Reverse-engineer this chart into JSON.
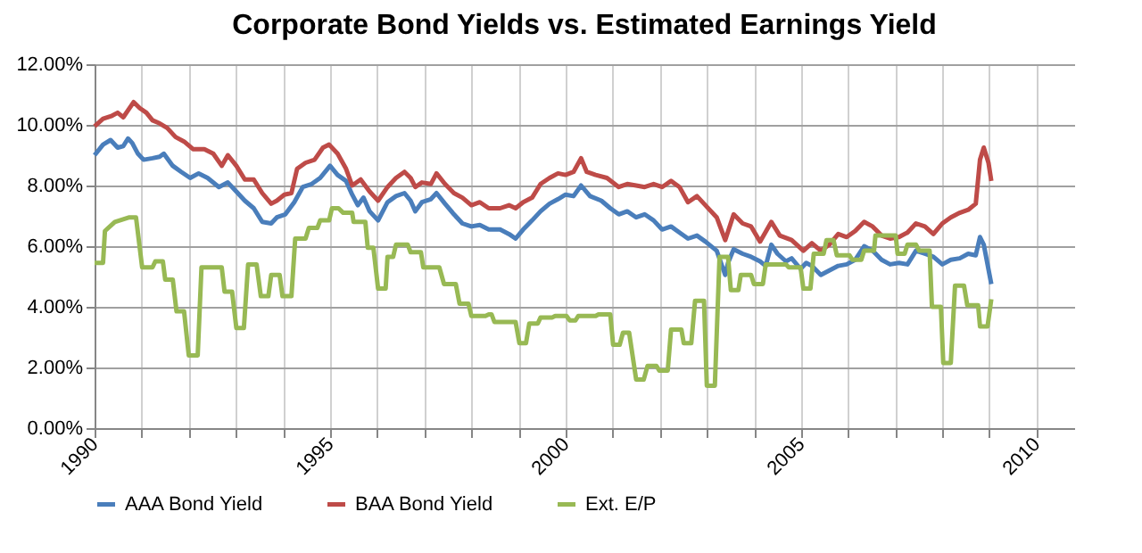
{
  "chart_data": {
    "type": "line",
    "title": "Corporate Bond Yields vs. Estimated Earnings Yield",
    "xlim": [
      1990,
      2010.8
    ],
    "xticks": [
      1990,
      {
        "value": 1991,
        "label": null
      },
      {
        "value": 1992,
        "label": null
      },
      {
        "value": 1993,
        "label": null
      },
      {
        "value": 1994,
        "label": null
      },
      1995,
      {
        "value": 1996,
        "label": null
      },
      {
        "value": 1997,
        "label": null
      },
      {
        "value": 1998,
        "label": null
      },
      {
        "value": 1999,
        "label": null
      },
      2000,
      {
        "value": 2001,
        "label": null
      },
      {
        "value": 2002,
        "label": null
      },
      {
        "value": 2003,
        "label": null
      },
      {
        "value": 2004,
        "label": null
      },
      2005,
      {
        "value": 2006,
        "label": null
      },
      {
        "value": 2007,
        "label": null
      },
      {
        "value": 2008,
        "label": null
      },
      {
        "value": 2009,
        "label": null
      },
      2010
    ],
    "ylim": [
      0,
      12
    ],
    "yticks": [
      {
        "value": 0,
        "label": "0.00%"
      },
      {
        "value": 2,
        "label": "2.00%"
      },
      {
        "value": 4,
        "label": "4.00%"
      },
      {
        "value": 6,
        "label": "6.00%"
      },
      {
        "value": 8,
        "label": "8.00%"
      },
      {
        "value": 10,
        "label": "10.00%"
      },
      {
        "value": 12,
        "label": "12.00%"
      }
    ],
    "grid": true,
    "legend": "bottom",
    "marker": "none",
    "line_style": "solid",
    "series": [
      {
        "name": "AAA Bond Yield",
        "color": "#4a7ebb",
        "x": [
          1990.0,
          1990.18,
          1990.34,
          1990.49,
          1990.61,
          1990.71,
          1990.8,
          1990.92,
          1991.04,
          1991.23,
          1991.38,
          1991.47,
          1991.66,
          1991.84,
          1992.03,
          1992.21,
          1992.4,
          1992.64,
          1992.83,
          1993.01,
          1993.19,
          1993.38,
          1993.56,
          1993.75,
          1993.87,
          1994.05,
          1994.24,
          1994.42,
          1994.61,
          1994.79,
          1995.0,
          1995.16,
          1995.34,
          1995.47,
          1995.59,
          1995.71,
          1995.84,
          1996.02,
          1996.22,
          1996.4,
          1996.58,
          1996.71,
          1996.81,
          1996.95,
          1997.14,
          1997.26,
          1997.44,
          1997.63,
          1997.81,
          1998.0,
          1998.18,
          1998.37,
          1998.61,
          1998.8,
          1998.94,
          1999.1,
          1999.29,
          1999.47,
          1999.66,
          1999.84,
          2000.0,
          2000.17,
          2000.33,
          2000.52,
          2000.76,
          2000.95,
          2001.13,
          2001.31,
          2001.5,
          2001.68,
          2001.87,
          2002.05,
          2002.24,
          2002.42,
          2002.6,
          2002.79,
          2002.97,
          2003.21,
          2003.39,
          2003.45,
          2003.57,
          2003.76,
          2003.94,
          2004.13,
          2004.25,
          2004.37,
          2004.5,
          2004.68,
          2004.8,
          2004.99,
          2005.11,
          2005.23,
          2005.42,
          2005.6,
          2005.79,
          2005.97,
          2006.15,
          2006.34,
          2006.52,
          2006.71,
          2006.89,
          2007.08,
          2007.26,
          2007.44,
          2007.63,
          2007.81,
          2008.0,
          2008.18,
          2008.37,
          2008.55,
          2008.71,
          2008.8,
          2008.88,
          2009.04
        ],
        "values": [
          9.0,
          9.35,
          9.5,
          9.25,
          9.3,
          9.55,
          9.4,
          9.05,
          8.85,
          8.9,
          8.95,
          9.05,
          8.65,
          8.45,
          8.25,
          8.4,
          8.25,
          7.95,
          8.1,
          7.8,
          7.5,
          7.25,
          6.8,
          6.75,
          6.95,
          7.05,
          7.45,
          7.95,
          8.05,
          8.25,
          8.65,
          8.35,
          8.15,
          7.7,
          7.35,
          7.6,
          7.15,
          6.85,
          7.45,
          7.65,
          7.75,
          7.5,
          7.15,
          7.45,
          7.55,
          7.75,
          7.4,
          7.05,
          6.75,
          6.65,
          6.7,
          6.55,
          6.55,
          6.4,
          6.25,
          6.55,
          6.85,
          7.15,
          7.4,
          7.55,
          7.7,
          7.65,
          8.0,
          7.65,
          7.5,
          7.25,
          7.05,
          7.15,
          6.95,
          7.05,
          6.85,
          6.55,
          6.65,
          6.45,
          6.25,
          6.35,
          6.15,
          5.85,
          5.05,
          5.45,
          5.9,
          5.75,
          5.65,
          5.5,
          5.35,
          6.05,
          5.75,
          5.5,
          5.6,
          5.25,
          5.45,
          5.35,
          5.05,
          5.2,
          5.35,
          5.4,
          5.55,
          6.0,
          5.85,
          5.55,
          5.4,
          5.45,
          5.4,
          5.85,
          5.75,
          5.65,
          5.4,
          5.55,
          5.6,
          5.75,
          5.7,
          6.3,
          6.05,
          4.75
        ]
      },
      {
        "name": "BAA Bond Yield",
        "color": "#be4b48",
        "x": [
          1990.0,
          1990.18,
          1990.37,
          1990.49,
          1990.61,
          1990.74,
          1990.83,
          1990.96,
          1991.1,
          1991.23,
          1991.38,
          1991.54,
          1991.72,
          1991.9,
          1992.09,
          1992.33,
          1992.52,
          1992.7,
          1992.83,
          1993.01,
          1993.19,
          1993.38,
          1993.56,
          1993.75,
          1993.87,
          1994.03,
          1994.18,
          1994.3,
          1994.48,
          1994.67,
          1994.85,
          1994.98,
          1995.16,
          1995.34,
          1995.47,
          1995.65,
          1995.84,
          1996.02,
          1996.22,
          1996.4,
          1996.58,
          1996.71,
          1996.81,
          1996.95,
          1997.14,
          1997.26,
          1997.44,
          1997.63,
          1997.81,
          1998.0,
          1998.18,
          1998.37,
          1998.61,
          1998.8,
          1998.94,
          1999.1,
          1999.29,
          1999.47,
          1999.66,
          1999.84,
          2000.0,
          2000.17,
          2000.33,
          2000.45,
          2000.64,
          2000.88,
          2001.13,
          2001.31,
          2001.5,
          2001.68,
          2001.87,
          2002.05,
          2002.24,
          2002.42,
          2002.6,
          2002.79,
          2002.97,
          2003.21,
          2003.39,
          2003.57,
          2003.76,
          2003.94,
          2004.13,
          2004.37,
          2004.55,
          2004.8,
          2005.05,
          2005.23,
          2005.42,
          2005.6,
          2005.79,
          2005.97,
          2006.15,
          2006.34,
          2006.52,
          2006.71,
          2006.89,
          2007.08,
          2007.26,
          2007.44,
          2007.63,
          2007.81,
          2008.0,
          2008.18,
          2008.37,
          2008.55,
          2008.71,
          2008.8,
          2008.88,
          2008.98,
          2009.04
        ],
        "values": [
          9.95,
          10.2,
          10.3,
          10.4,
          10.25,
          10.55,
          10.75,
          10.55,
          10.4,
          10.15,
          10.05,
          9.9,
          9.6,
          9.45,
          9.2,
          9.2,
          9.05,
          8.65,
          9.0,
          8.65,
          8.2,
          8.2,
          7.75,
          7.4,
          7.5,
          7.7,
          7.75,
          8.55,
          8.75,
          8.85,
          9.25,
          9.35,
          9.05,
          8.55,
          8.0,
          8.2,
          7.8,
          7.5,
          7.95,
          8.25,
          8.45,
          8.25,
          7.95,
          8.1,
          8.05,
          8.4,
          8.05,
          7.75,
          7.6,
          7.35,
          7.45,
          7.25,
          7.25,
          7.35,
          7.25,
          7.45,
          7.6,
          8.05,
          8.25,
          8.4,
          8.35,
          8.45,
          8.9,
          8.45,
          8.35,
          8.25,
          7.95,
          8.05,
          8.0,
          7.95,
          8.05,
          7.95,
          8.15,
          7.95,
          7.45,
          7.65,
          7.35,
          6.95,
          6.2,
          7.05,
          6.75,
          6.65,
          6.15,
          6.8,
          6.35,
          6.2,
          5.85,
          6.1,
          5.85,
          6.05,
          6.4,
          6.3,
          6.5,
          6.8,
          6.65,
          6.35,
          6.25,
          6.3,
          6.45,
          6.75,
          6.65,
          6.4,
          6.75,
          6.95,
          7.1,
          7.2,
          7.4,
          8.85,
          9.25,
          8.75,
          8.15
        ]
      },
      {
        "name": "Ext. E/P",
        "color": "#98b954",
        "x": [
          1990.0,
          1990.18,
          1990.22,
          1990.43,
          1990.74,
          1990.88,
          1991.01,
          1991.23,
          1991.29,
          1991.45,
          1991.5,
          1991.66,
          1991.74,
          1991.9,
          1992.0,
          1992.19,
          1992.27,
          1992.7,
          1992.76,
          1992.92,
          1993.01,
          1993.17,
          1993.26,
          1993.44,
          1993.53,
          1993.69,
          1993.75,
          1993.93,
          1993.99,
          1994.18,
          1994.26,
          1994.48,
          1994.55,
          1994.73,
          1994.79,
          1994.98,
          1995.04,
          1995.18,
          1995.28,
          1995.47,
          1995.5,
          1995.75,
          1995.8,
          1995.92,
          1996.02,
          1996.18,
          1996.22,
          1996.34,
          1996.4,
          1996.65,
          1996.71,
          1996.93,
          1996.98,
          1997.32,
          1997.42,
          1997.67,
          1997.75,
          1997.94,
          1998.0,
          1998.3,
          1998.37,
          1998.43,
          1998.49,
          1998.94,
          1999.02,
          1999.16,
          1999.23,
          1999.41,
          1999.47,
          1999.72,
          1999.78,
          2000.02,
          2000.09,
          2000.21,
          2000.27,
          2000.64,
          2000.7,
          2000.95,
          2001.01,
          2001.15,
          2001.22,
          2001.35,
          2001.5,
          2001.66,
          2001.74,
          2001.93,
          2001.99,
          2002.17,
          2002.24,
          2002.46,
          2002.51,
          2002.67,
          2002.75,
          2002.94,
          2003.0,
          2003.17,
          2003.27,
          2003.45,
          2003.51,
          2003.67,
          2003.72,
          2003.94,
          2004.0,
          2004.19,
          2004.25,
          2004.68,
          2004.74,
          2004.99,
          2005.05,
          2005.2,
          2005.27,
          2005.48,
          2005.54,
          2005.69,
          2005.76,
          2006.03,
          2006.09,
          2006.28,
          2006.34,
          2006.55,
          2006.58,
          2007.01,
          2007.05,
          2007.2,
          2007.26,
          2007.44,
          2007.51,
          2007.73,
          2007.78,
          2007.97,
          2008.02,
          2008.18,
          2008.27,
          2008.46,
          2008.53,
          2008.76,
          2008.8,
          2008.96,
          2009.04
        ],
        "values": [
          5.45,
          5.45,
          6.5,
          6.8,
          6.95,
          6.95,
          5.3,
          5.3,
          5.5,
          5.5,
          4.9,
          4.9,
          3.85,
          3.85,
          2.4,
          2.4,
          5.3,
          5.3,
          4.5,
          4.5,
          3.3,
          3.3,
          5.4,
          5.4,
          4.35,
          4.35,
          5.05,
          5.05,
          4.35,
          4.35,
          6.25,
          6.25,
          6.6,
          6.6,
          6.85,
          6.85,
          7.25,
          7.25,
          7.1,
          7.1,
          6.8,
          6.8,
          5.95,
          5.95,
          4.6,
          4.6,
          5.65,
          5.65,
          6.05,
          6.05,
          5.8,
          5.8,
          5.3,
          5.3,
          4.75,
          4.75,
          4.1,
          4.1,
          3.7,
          3.7,
          3.75,
          3.75,
          3.5,
          3.5,
          2.8,
          2.8,
          3.45,
          3.45,
          3.65,
          3.65,
          3.7,
          3.7,
          3.55,
          3.55,
          3.7,
          3.7,
          3.75,
          3.75,
          2.75,
          2.75,
          3.15,
          3.15,
          1.6,
          1.6,
          2.05,
          2.05,
          1.9,
          1.9,
          3.25,
          3.25,
          2.8,
          2.8,
          4.2,
          4.2,
          1.4,
          1.4,
          5.65,
          5.65,
          4.55,
          4.55,
          5.05,
          5.05,
          4.75,
          4.75,
          5.4,
          5.4,
          5.3,
          5.3,
          4.6,
          4.6,
          5.75,
          5.75,
          6.2,
          6.2,
          5.7,
          5.7,
          5.55,
          5.55,
          5.85,
          5.85,
          6.35,
          6.35,
          5.75,
          5.75,
          6.05,
          6.05,
          5.85,
          5.85,
          4.0,
          4.0,
          2.15,
          2.15,
          4.7,
          4.7,
          4.05,
          4.05,
          3.35,
          3.35,
          4.25
        ]
      }
    ]
  }
}
